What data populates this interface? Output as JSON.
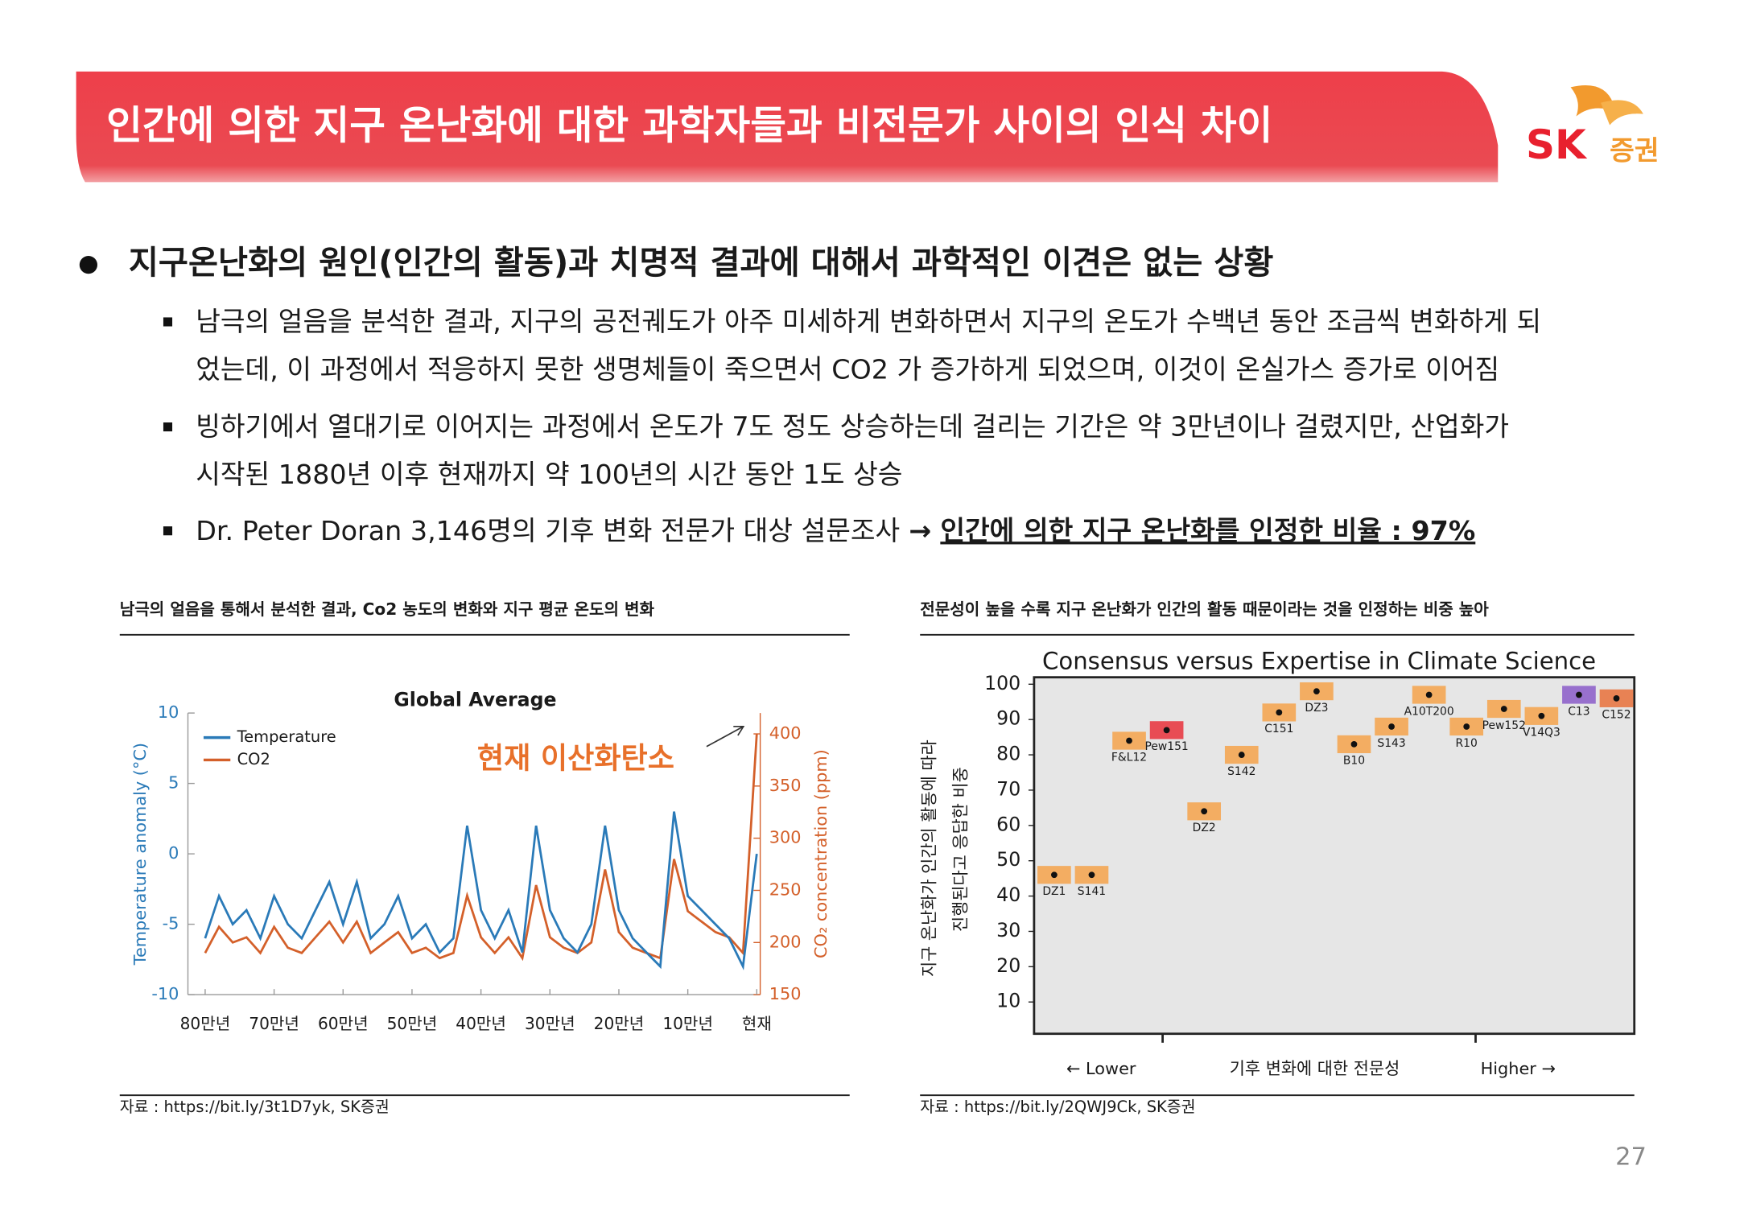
{
  "header": {
    "title": "인간에 의한 지구 온난화에 대한 과학자들과 비전문가 사이의 인식 차이"
  },
  "logo": {
    "brand": "SK",
    "sub": "증권"
  },
  "bullet": {
    "heading": "지구온난화의 원인(인간의 활동)과 치명적 결과에 대해서 과학적인 이견은 없는 상황",
    "items": [
      [
        "남극의 얼음을 분석한 결과, 지구의 공전궤도가 아주 미세하게 변화하면서 지구의 온도가 수백년 동안 조금씩 변화하게 되",
        "었는데, 이 과정에서 적응하지 못한 생명체들이 죽으면서 CO2 가 증가하게 되었으며, 이것이 온실가스 증가로 이어짐"
      ],
      [
        "빙하기에서 열대기로 이어지는 과정에서 온도가 7도 정도 상승하는데 걸리는 기간은 약 3만년이나 걸렸지만, 산업화가",
        "시작된 1880년 이후 현재까지 약 100년의 시간 동안 1도 상승"
      ]
    ],
    "survey": {
      "text": "Dr. Peter Doran 3,146명의 기후 변화 전문가 대상 설문조사",
      "arrow": "→",
      "highlight": "인간에 의한 지구 온난화를 인정한 비율 : 97%"
    }
  },
  "figures": [
    {
      "caption": "남극의 얼음을 통해서 분석한 결과, Co2 농도의 변화와 지구 평균 온도의 변화",
      "source": "자료 : https://bit.ly/3t1D7yk, SK증권",
      "chart": {
        "type": "line",
        "title": "Global Average",
        "annotation": "현재 이산화탄소",
        "ylabel": "Temperature anomaly (°C)",
        "y2label": "CO₂ concentration (ppm)",
        "x": [
          -800000,
          -780000,
          -760000,
          -740000,
          -720000,
          -700000,
          -680000,
          -660000,
          -640000,
          -620000,
          -600000,
          -580000,
          -560000,
          -540000,
          -520000,
          -500000,
          -480000,
          -460000,
          -440000,
          -420000,
          -400000,
          -380000,
          -360000,
          -340000,
          -320000,
          -300000,
          -280000,
          -260000,
          -240000,
          -220000,
          -200000,
          -180000,
          -160000,
          -140000,
          -120000,
          -100000,
          -80000,
          -60000,
          -40000,
          -20000,
          0
        ],
        "xlim": [
          -825000,
          5000
        ],
        "xticks": [
          {
            "value": -800000,
            "label": "80만년"
          },
          {
            "value": -700000,
            "label": "70만년"
          },
          {
            "value": -600000,
            "label": "60만년"
          },
          {
            "value": -500000,
            "label": "50만년"
          },
          {
            "value": -400000,
            "label": "40만년"
          },
          {
            "value": -300000,
            "label": "30만년"
          },
          {
            "value": -200000,
            "label": "20만년"
          },
          {
            "value": -100000,
            "label": "10만년"
          },
          {
            "value": 0,
            "label": "현재"
          }
        ],
        "ylim": [
          -10,
          10
        ],
        "yticks": [
          -10,
          -5,
          0,
          5,
          10
        ],
        "y2lim": [
          150,
          420
        ],
        "y2ticks": [
          150,
          200,
          250,
          300,
          350,
          400
        ],
        "series": [
          {
            "name": "Temperature",
            "color": "#2a7ab8",
            "values": [
              -6,
              -3,
              -5,
              -4,
              -6,
              -3,
              -5,
              -6,
              -4,
              -2,
              -5,
              -2,
              -6,
              -5,
              -3,
              -6,
              -5,
              -7,
              -6,
              2,
              -4,
              -6,
              -4,
              -7,
              2,
              -4,
              -6,
              -7,
              -5,
              2,
              -4,
              -6,
              -7,
              -8,
              3,
              -3,
              -4,
              -5,
              -6,
              -8,
              0
            ]
          },
          {
            "name": "CO2",
            "color": "#d4602a",
            "axis": "y2",
            "values": [
              190,
              215,
              200,
              205,
              190,
              215,
              195,
              190,
              205,
              220,
              200,
              220,
              190,
              200,
              210,
              190,
              195,
              185,
              190,
              245,
              205,
              190,
              205,
              185,
              255,
              205,
              195,
              190,
              200,
              270,
              210,
              195,
              190,
              185,
              280,
              230,
              220,
              210,
              205,
              190,
              400
            ]
          }
        ]
      }
    },
    {
      "caption": "전문성이 높을 수록 지구 온난화가 인간의 활동 때문이라는 것을 인정하는 비중 높아",
      "source": "자료 : https://bit.ly/2QWJ9Ck, SK증권",
      "chart": {
        "type": "scatter",
        "title": "Consensus versus Expertise in Climate Science",
        "ylabel": [
          "지구 온난화가 인간의 활동에 따라",
          "진행된다고 응답한 비중"
        ],
        "xlabels": [
          "← Lower",
          "기후 변화에 대한 전문성",
          "Higher →"
        ],
        "categories": [
          "DZ1",
          "S141",
          "F&L12",
          "Pew151",
          "DZ2",
          "S142",
          "C151",
          "DZ3",
          "B10",
          "S143",
          "A10T200",
          "R10",
          "Pew152",
          "V14Q3",
          "C13",
          "C152"
        ],
        "values": [
          46,
          46,
          84,
          87,
          64,
          80,
          92,
          98,
          83,
          88,
          97,
          88,
          93,
          91,
          97,
          96
        ],
        "colors": [
          "#f5a24a",
          "#f5a24a",
          "#f5a24a",
          "#e8303a",
          "#f5a24a",
          "#f5a24a",
          "#f5a24a",
          "#f5a24a",
          "#f5a24a",
          "#f5a24a",
          "#f5a24a",
          "#f5a24a",
          "#f5a24a",
          "#f5a24a",
          "#8a5ac8",
          "#e8703a"
        ],
        "ylim": [
          1,
          104.5
        ],
        "yticks": [
          10,
          20,
          30,
          40,
          50,
          60,
          70,
          80,
          90,
          100
        ]
      }
    }
  ],
  "page_number": "27"
}
